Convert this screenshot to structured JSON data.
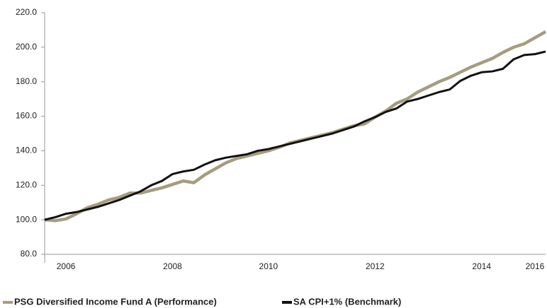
{
  "chart_data": {
    "type": "line",
    "categories": [
      null,
      null,
      "2006",
      null,
      null,
      null,
      null,
      null,
      null,
      null,
      null,
      null,
      "2008",
      null,
      null,
      null,
      null,
      null,
      null,
      null,
      null,
      "2010",
      null,
      null,
      null,
      null,
      null,
      null,
      null,
      null,
      null,
      "2012",
      null,
      null,
      null,
      null,
      null,
      null,
      null,
      null,
      null,
      "2014",
      null,
      null,
      null,
      null,
      "2016",
      null
    ],
    "series": [
      {
        "name": "PSG Diversified Income Fund A (Performance)",
        "color": "#a69d80",
        "values": [
          100,
          99.5,
          100.5,
          103.5,
          107,
          109,
          111.5,
          113,
          115.5,
          115.5,
          117,
          118.5,
          120.5,
          122.5,
          121.5,
          126,
          129.5,
          133,
          135.5,
          137,
          138.5,
          140,
          142,
          144.5,
          146,
          147.5,
          149,
          150.5,
          152.5,
          154.5,
          155.5,
          159.5,
          163,
          167.5,
          170,
          174,
          177,
          180,
          182.5,
          185.5,
          188.5,
          191,
          193.5,
          197,
          200,
          202,
          205.5,
          209
        ]
      },
      {
        "name": "SA CPI+1% (Benchmark)",
        "color": "#111111",
        "values": [
          100,
          101.5,
          103.5,
          104.5,
          106,
          107.5,
          109.5,
          111.5,
          114,
          116.5,
          120,
          122.5,
          126.5,
          128,
          129,
          132,
          134.5,
          136,
          137,
          138,
          140,
          141,
          142.5,
          144,
          145.5,
          147,
          148.5,
          150,
          152,
          154,
          157,
          159.5,
          162.5,
          164.5,
          168.5,
          170,
          172,
          174,
          175.5,
          180.5,
          183.5,
          185.5,
          186,
          187.5,
          193,
          195.5,
          196,
          197.5
        ]
      }
    ],
    "ylim": [
      80,
      220
    ],
    "yticks": [
      {
        "value": 80,
        "label": "80.0"
      },
      {
        "value": 100,
        "label": "100.0"
      },
      {
        "value": 120,
        "label": "120.0"
      },
      {
        "value": 140,
        "label": "140.0"
      },
      {
        "value": 160,
        "label": "160.0"
      },
      {
        "value": 180,
        "label": "180.0"
      },
      {
        "value": 200,
        "label": "200.0"
      },
      {
        "value": 220,
        "label": "220.0"
      }
    ],
    "grid": false,
    "legend": "bottom"
  }
}
